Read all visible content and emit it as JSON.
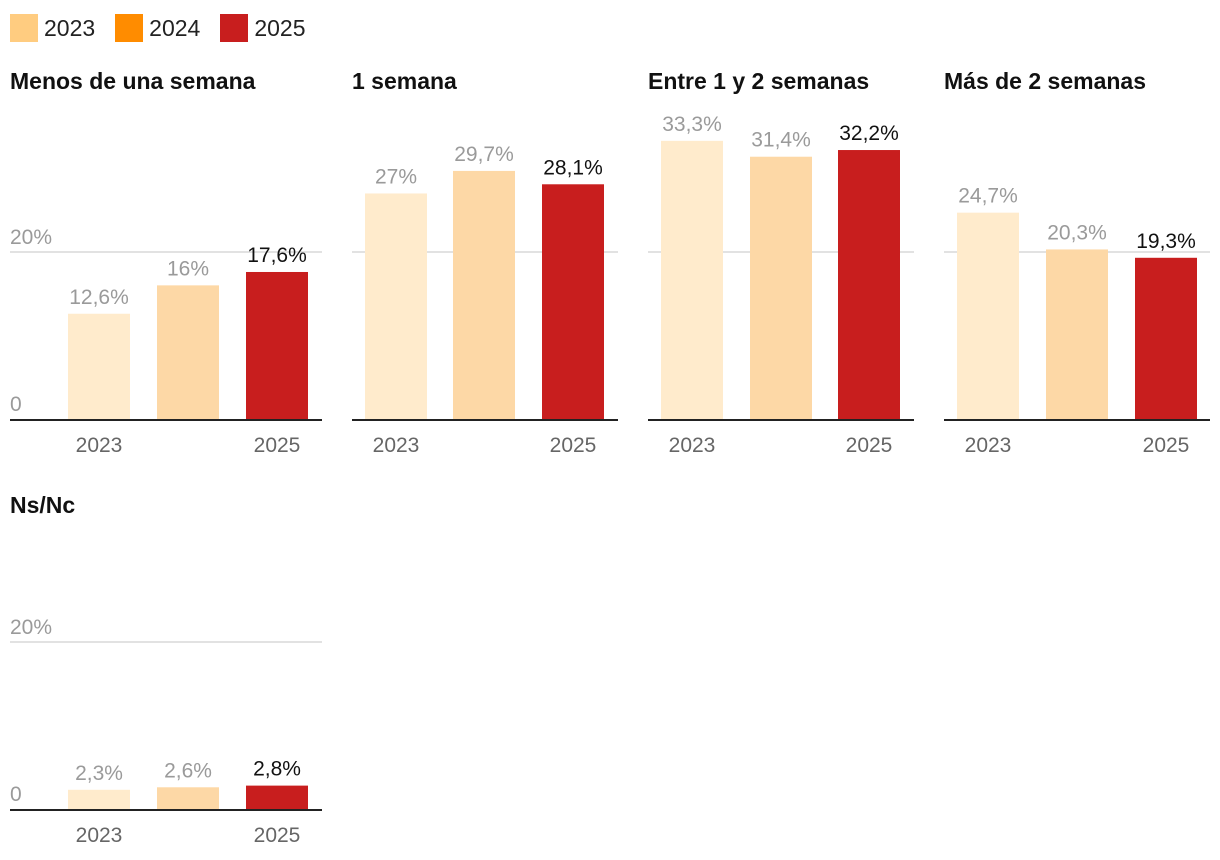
{
  "legend": [
    {
      "label": "2023",
      "color": "#ffcc80"
    },
    {
      "label": "2024",
      "color": "#ff8c00"
    },
    {
      "label": "2025",
      "color": "#c81e1e"
    }
  ],
  "chart_data": [
    {
      "type": "bar",
      "title": "Menos de una semana",
      "categories": [
        "2023",
        "2024",
        "2025"
      ],
      "values": [
        12.6,
        16,
        17.6
      ],
      "value_labels": [
        "12,6%",
        "16%",
        "17,6%"
      ],
      "x_tick_labels": [
        "2023",
        "",
        "2025"
      ],
      "y_ticks": [
        0,
        20
      ],
      "y_tick_labels": [
        "0",
        "20%"
      ],
      "show_y_labels": true,
      "bar_colors": [
        "#ffebcc",
        "#fdd8a6",
        "#c81e1e"
      ],
      "label_colors": [
        "#9a9a9a",
        "#9a9a9a",
        "#111111"
      ],
      "ylim": [
        0,
        34
      ]
    },
    {
      "type": "bar",
      "title": "1 semana",
      "categories": [
        "2023",
        "2024",
        "2025"
      ],
      "values": [
        27,
        29.7,
        28.1
      ],
      "value_labels": [
        "27%",
        "29,7%",
        "28,1%"
      ],
      "x_tick_labels": [
        "2023",
        "",
        "2025"
      ],
      "y_ticks": [
        0,
        20
      ],
      "y_tick_labels": [
        "",
        ""
      ],
      "show_y_labels": false,
      "bar_colors": [
        "#ffebcc",
        "#fdd8a6",
        "#c81e1e"
      ],
      "label_colors": [
        "#9a9a9a",
        "#9a9a9a",
        "#111111"
      ],
      "ylim": [
        0,
        34
      ]
    },
    {
      "type": "bar",
      "title": "Entre 1 y 2 semanas",
      "categories": [
        "2023",
        "2024",
        "2025"
      ],
      "values": [
        33.3,
        31.4,
        32.2
      ],
      "value_labels": [
        "33,3%",
        "31,4%",
        "32,2%"
      ],
      "x_tick_labels": [
        "2023",
        "",
        "2025"
      ],
      "y_ticks": [
        0,
        20
      ],
      "y_tick_labels": [
        "",
        ""
      ],
      "show_y_labels": false,
      "bar_colors": [
        "#ffebcc",
        "#fdd8a6",
        "#c81e1e"
      ],
      "label_colors": [
        "#9a9a9a",
        "#9a9a9a",
        "#111111"
      ],
      "ylim": [
        0,
        34
      ]
    },
    {
      "type": "bar",
      "title": "Más de 2 semanas",
      "categories": [
        "2023",
        "2024",
        "2025"
      ],
      "values": [
        24.7,
        20.3,
        19.3
      ],
      "value_labels": [
        "24,7%",
        "20,3%",
        "19,3%"
      ],
      "x_tick_labels": [
        "2023",
        "",
        "2025"
      ],
      "y_ticks": [
        0,
        20
      ],
      "y_tick_labels": [
        "",
        ""
      ],
      "show_y_labels": false,
      "bar_colors": [
        "#ffebcc",
        "#fdd8a6",
        "#c81e1e"
      ],
      "label_colors": [
        "#9a9a9a",
        "#9a9a9a",
        "#111111"
      ],
      "ylim": [
        0,
        34
      ]
    },
    {
      "type": "bar",
      "title": "Ns/Nc",
      "categories": [
        "2023",
        "2024",
        "2025"
      ],
      "values": [
        2.3,
        2.6,
        2.8
      ],
      "value_labels": [
        "2,3%",
        "2,6%",
        "2,8%"
      ],
      "x_tick_labels": [
        "2023",
        "",
        "2025"
      ],
      "y_ticks": [
        0,
        20
      ],
      "y_tick_labels": [
        "0",
        "20%"
      ],
      "show_y_labels": true,
      "bar_colors": [
        "#ffebcc",
        "#fdd8a6",
        "#c81e1e"
      ],
      "label_colors": [
        "#9a9a9a",
        "#9a9a9a",
        "#111111"
      ],
      "ylim": [
        0,
        34
      ]
    }
  ]
}
